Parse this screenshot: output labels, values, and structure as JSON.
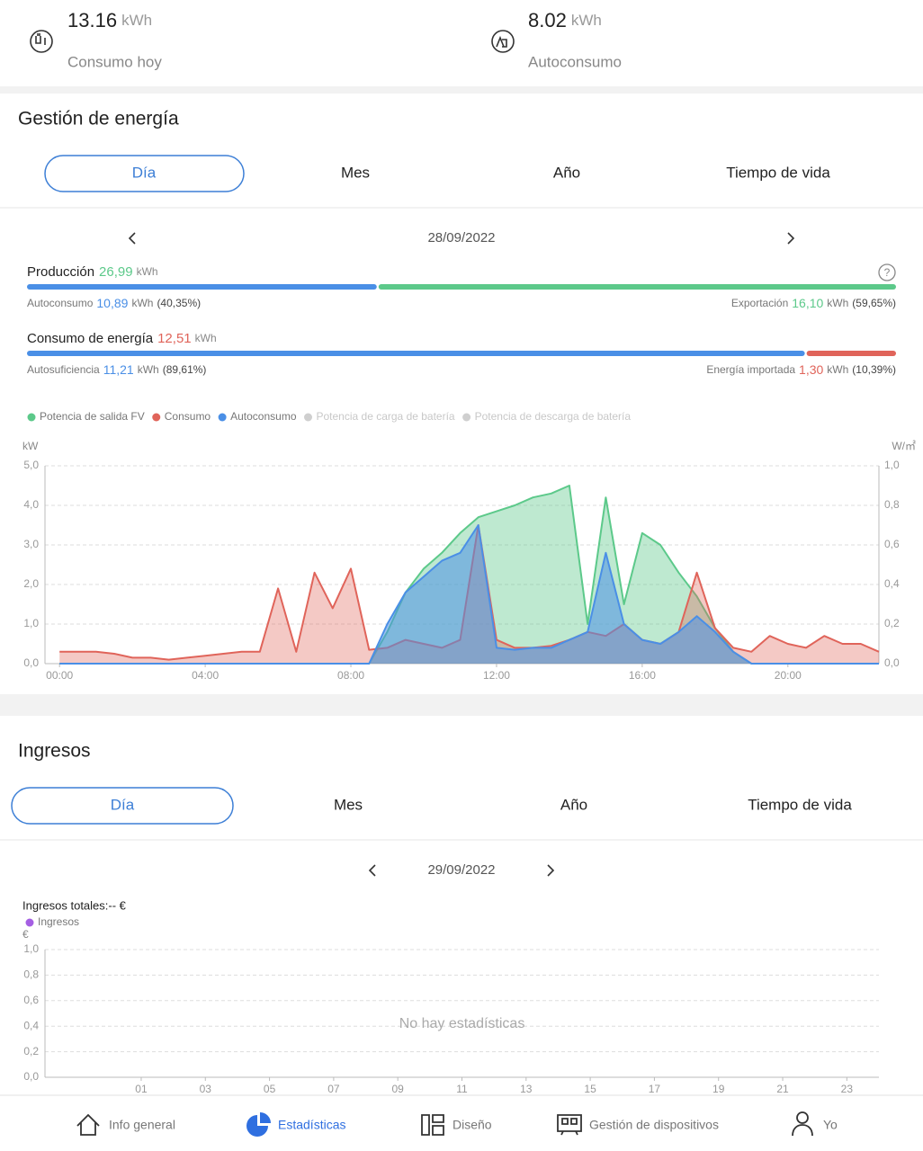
{
  "stats": [
    {
      "value": "13.16",
      "unit": "kWh",
      "label": "Consumo hoy"
    },
    {
      "value": "8.02",
      "unit": "kWh",
      "label": "Autoconsumo"
    }
  ],
  "energy": {
    "title": "Gestión de energía",
    "tabs": [
      "Día",
      "Mes",
      "Año",
      "Tiempo de vida"
    ],
    "date": "28/09/2022",
    "production": {
      "label": "Producción",
      "value": "26,99",
      "unit": "kWh",
      "color": "#5cc98a",
      "parts": [
        {
          "label": "Autoconsumo",
          "value": "10,89",
          "unit": "kWh",
          "percent": 40.35,
          "percent_label": "(40,35%)",
          "color": "#4a8fe6"
        },
        {
          "label": "Exportación",
          "value": "16,10",
          "unit": "kWh",
          "percent": 59.65,
          "percent_label": "(59,65%)",
          "color": "#5cc98a"
        }
      ]
    },
    "consumption": {
      "label": "Consumo de energía",
      "value": "12,51",
      "unit": "kWh",
      "color": "#e0645a",
      "parts": [
        {
          "label": "Autosuficiencia",
          "value": "11,21",
          "unit": "kWh",
          "percent": 89.61,
          "percent_label": "(89,61%)",
          "color": "#4a8fe6"
        },
        {
          "label": "Energía importada",
          "value": "1,30",
          "unit": "kWh",
          "percent": 10.39,
          "percent_label": "(10,39%)",
          "color": "#e0645a"
        }
      ]
    }
  },
  "income": {
    "title": "Ingresos",
    "tabs": [
      "Día",
      "Mes",
      "Año",
      "Tiempo de vida"
    ],
    "date": "29/09/2022"
  },
  "chart_data": [
    {
      "type": "area",
      "ylabel": "kW",
      "y2label": "W/㎡",
      "grid": true,
      "x": [
        0,
        0.5,
        1,
        1.5,
        2,
        2.5,
        3,
        3.5,
        4,
        4.5,
        5,
        5.5,
        6,
        6.5,
        7,
        7.5,
        8,
        8.5,
        9,
        9.5,
        10,
        10.5,
        11,
        11.5,
        12,
        12.5,
        13,
        13.5,
        14,
        14.5,
        15,
        15.5,
        16,
        16.5,
        17,
        17.5,
        18,
        18.5,
        19,
        19.5,
        20,
        20.5,
        21,
        21.5,
        22,
        22.5
      ],
      "xlim": [
        -0.4,
        22.5
      ],
      "xticks": [
        {
          "value": 0,
          "label": "00:00"
        },
        {
          "value": 4,
          "label": "04:00"
        },
        {
          "value": 8,
          "label": "08:00"
        },
        {
          "value": 12,
          "label": "12:00"
        },
        {
          "value": 16,
          "label": "16:00"
        },
        {
          "value": 20,
          "label": "20:00"
        }
      ],
      "ylim": [
        0,
        5
      ],
      "yticks": [
        {
          "value": 0,
          "label": "0,0"
        },
        {
          "value": 1,
          "label": "1,0"
        },
        {
          "value": 2,
          "label": "2,0"
        },
        {
          "value": 3,
          "label": "3,0"
        },
        {
          "value": 4,
          "label": "4,0"
        },
        {
          "value": 5,
          "label": "5,0"
        }
      ],
      "y2lim": [
        0,
        1
      ],
      "y2ticks": [
        {
          "value": 0,
          "label": "0,0"
        },
        {
          "value": 0.2,
          "label": "0,2"
        },
        {
          "value": 0.4,
          "label": "0,4"
        },
        {
          "value": 0.6,
          "label": "0,6"
        },
        {
          "value": 0.8,
          "label": "0,8"
        },
        {
          "value": 1,
          "label": "1,0"
        }
      ],
      "series": [
        {
          "name": "Potencia de salida FV",
          "color": "#5cc98a",
          "values": [
            0,
            0,
            0,
            0,
            0,
            0,
            0,
            0,
            0,
            0,
            0,
            0,
            0,
            0,
            0,
            0,
            0,
            0,
            0.8,
            1.8,
            2.4,
            2.8,
            3.3,
            3.7,
            3.85,
            4.0,
            4.2,
            4.3,
            4.5,
            1.0,
            4.2,
            1.5,
            3.3,
            3.0,
            2.3,
            1.7,
            0.9,
            0.3,
            0,
            0,
            0,
            0,
            0,
            0,
            0,
            0
          ]
        },
        {
          "name": "Consumo",
          "color": "#e0645a",
          "values": [
            0.3,
            0.3,
            0.3,
            0.25,
            0.15,
            0.15,
            0.1,
            0.15,
            0.2,
            0.25,
            0.3,
            0.3,
            1.9,
            0.3,
            2.3,
            1.4,
            2.4,
            0.35,
            0.4,
            0.6,
            0.5,
            0.4,
            0.6,
            3.5,
            0.6,
            0.4,
            0.4,
            0.45,
            0.6,
            0.8,
            0.7,
            1.0,
            0.6,
            0.5,
            0.8,
            2.3,
            0.9,
            0.4,
            0.3,
            0.7,
            0.5,
            0.4,
            0.7,
            0.5,
            0.5,
            0.3
          ]
        },
        {
          "name": "Autoconsumo",
          "color": "#4a8fe6",
          "values": [
            0,
            0,
            0,
            0,
            0,
            0,
            0,
            0,
            0,
            0,
            0,
            0,
            0,
            0,
            0,
            0,
            0,
            0,
            1.0,
            1.8,
            2.2,
            2.6,
            2.8,
            3.5,
            0.4,
            0.35,
            0.4,
            0.4,
            0.6,
            0.8,
            2.8,
            1.0,
            0.6,
            0.5,
            0.8,
            1.2,
            0.8,
            0.3,
            0,
            0,
            0,
            0,
            0,
            0,
            0,
            0
          ]
        },
        {
          "name": "Potencia de carga de batería",
          "color": "#cfcfcf",
          "visible": false
        },
        {
          "name": "Potencia de descarga de batería",
          "color": "#cfcfcf",
          "visible": false
        }
      ]
    },
    {
      "type": "bar",
      "title": "Ingresos totales:-- €",
      "ylabel": "€",
      "empty_text": "No hay estadísticas",
      "grid": true,
      "xlim": [
        -2,
        24
      ],
      "xticks": [
        {
          "value": 1,
          "label": "01"
        },
        {
          "value": 3,
          "label": "03"
        },
        {
          "value": 5,
          "label": "05"
        },
        {
          "value": 7,
          "label": "07"
        },
        {
          "value": 9,
          "label": "09"
        },
        {
          "value": 11,
          "label": "11"
        },
        {
          "value": 13,
          "label": "13"
        },
        {
          "value": 15,
          "label": "15"
        },
        {
          "value": 17,
          "label": "17"
        },
        {
          "value": 19,
          "label": "19"
        },
        {
          "value": 21,
          "label": "21"
        },
        {
          "value": 23,
          "label": "23"
        }
      ],
      "ylim": [
        0,
        1
      ],
      "yticks": [
        {
          "value": 0,
          "label": "0,0"
        },
        {
          "value": 0.2,
          "label": "0,2"
        },
        {
          "value": 0.4,
          "label": "0,4"
        },
        {
          "value": 0.6,
          "label": "0,6"
        },
        {
          "value": 0.8,
          "label": "0,8"
        },
        {
          "value": 1,
          "label": "1,0"
        }
      ],
      "series": [
        {
          "name": "Ingresos",
          "color": "#a55fe3",
          "values": []
        }
      ]
    }
  ],
  "nav": [
    "Info general",
    "Estadísticas",
    "Diseño",
    "Gestión de dispositivos",
    "Yo"
  ],
  "nav_active": 1
}
